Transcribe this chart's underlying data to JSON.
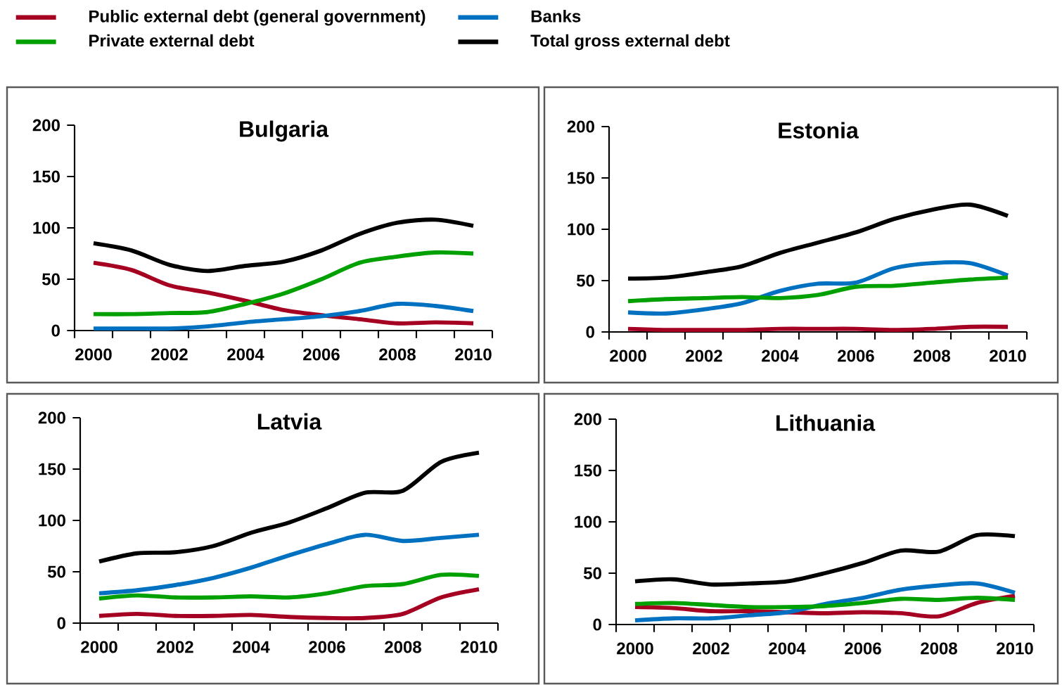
{
  "chart_data": [
    {
      "type": "line",
      "title": "Bulgaria",
      "legend": "top",
      "categories": [
        "2000",
        null,
        "2002",
        null,
        "2004",
        null,
        "2006",
        null,
        "2008",
        null,
        "2010"
      ],
      "ylim": [
        0,
        200
      ],
      "yticks": [
        0,
        50,
        100,
        150,
        200
      ],
      "series": [
        {
          "name": "Public external debt (general government)",
          "color": "#a50021",
          "values": [
            66,
            59,
            44,
            37,
            29,
            20,
            15,
            11,
            7,
            8,
            7
          ]
        },
        {
          "name": "Banks",
          "color": "#0070c0",
          "values": [
            2,
            2,
            2,
            4,
            8,
            11,
            14,
            19,
            26,
            24,
            19
          ]
        },
        {
          "name": "Private external debt",
          "color": "#00a000",
          "values": [
            16,
            16,
            17,
            18,
            26,
            36,
            50,
            66,
            72,
            76,
            75
          ]
        },
        {
          "name": "Total gross external debt",
          "color": "#000000",
          "values": [
            85,
            78,
            64,
            58,
            63,
            67,
            78,
            94,
            105,
            108,
            102
          ]
        }
      ]
    },
    {
      "type": "line",
      "title": "Estonia",
      "categories": [
        "2000",
        null,
        "2002",
        null,
        "2004",
        null,
        "2006",
        null,
        "2008",
        null,
        "2010"
      ],
      "ylim": [
        0,
        200
      ],
      "yticks": [
        0,
        50,
        100,
        150,
        200
      ],
      "series": [
        {
          "color": "#a50021",
          "values": [
            3,
            2,
            2,
            2,
            3,
            3,
            3,
            2,
            3,
            5,
            5
          ]
        },
        {
          "color": "#0070c0",
          "values": [
            19,
            18,
            22,
            28,
            40,
            47,
            48,
            62,
            67,
            67,
            55
          ]
        },
        {
          "color": "#00a000",
          "values": [
            30,
            32,
            33,
            34,
            33,
            36,
            44,
            45,
            48,
            51,
            53
          ]
        },
        {
          "color": "#000000",
          "values": [
            52,
            53,
            58,
            64,
            77,
            87,
            97,
            110,
            119,
            124,
            113
          ]
        }
      ]
    },
    {
      "type": "line",
      "title": "Latvia",
      "categories": [
        "2000",
        null,
        "2002",
        null,
        "2004",
        null,
        "2006",
        null,
        "2008",
        null,
        "2010"
      ],
      "ylim": [
        0,
        200
      ],
      "yticks": [
        0,
        50,
        100,
        150,
        200
      ],
      "series": [
        {
          "color": "#a50021",
          "values": [
            7,
            9,
            7,
            7,
            8,
            6,
            5,
            5,
            9,
            25,
            33
          ]
        },
        {
          "color": "#0070c0",
          "values": [
            29,
            32,
            37,
            44,
            54,
            66,
            77,
            86,
            80,
            83,
            86
          ]
        },
        {
          "color": "#00a000",
          "values": [
            24,
            27,
            25,
            25,
            26,
            25,
            29,
            36,
            38,
            47,
            46
          ]
        },
        {
          "color": "#000000",
          "values": [
            60,
            68,
            69,
            75,
            88,
            98,
            112,
            127,
            129,
            157,
            166
          ]
        }
      ]
    },
    {
      "type": "line",
      "title": "Lithuania",
      "categories": [
        "2000",
        null,
        "2002",
        null,
        "2004",
        null,
        "2006",
        null,
        "2008",
        null,
        "2010"
      ],
      "ylim": [
        0,
        200
      ],
      "yticks": [
        0,
        50,
        100,
        150,
        200
      ],
      "series": [
        {
          "color": "#a50021",
          "values": [
            17,
            16,
            13,
            13,
            12,
            11,
            12,
            11,
            8,
            21,
            28
          ]
        },
        {
          "color": "#0070c0",
          "values": [
            4,
            6,
            6,
            9,
            12,
            20,
            26,
            34,
            38,
            40,
            31
          ]
        },
        {
          "color": "#00a000",
          "values": [
            20,
            21,
            19,
            17,
            17,
            18,
            21,
            25,
            24,
            26,
            24
          ]
        },
        {
          "color": "#000000",
          "values": [
            42,
            44,
            39,
            40,
            42,
            50,
            60,
            72,
            71,
            87,
            86
          ]
        }
      ]
    }
  ]
}
